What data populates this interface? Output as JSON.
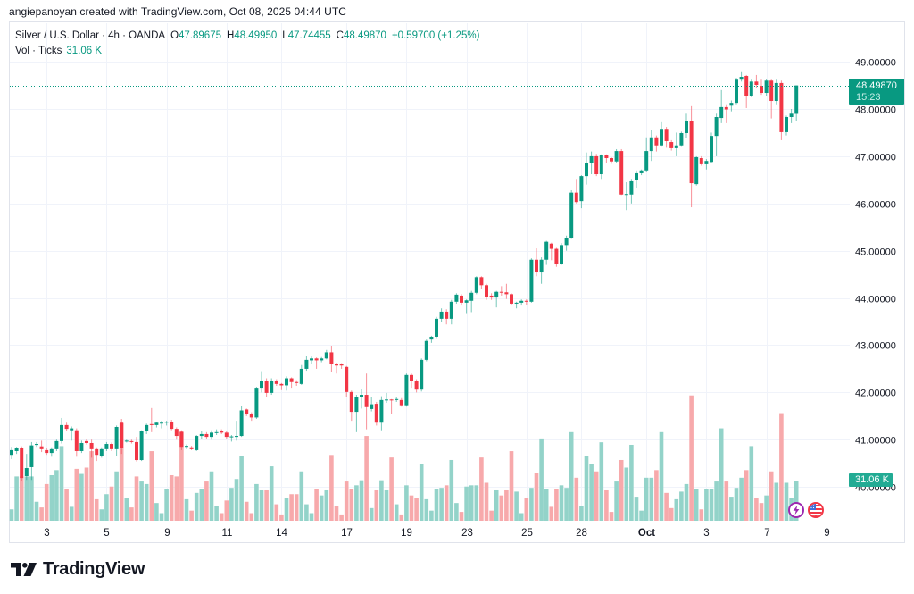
{
  "header": {
    "attribution": "angiepanoyan created with TradingView.com, Oct 08, 2025 04:44 UTC"
  },
  "legend": {
    "symbol": "Silver / U.S. Dollar · 4h · OANDA",
    "open_label": "O",
    "open": "47.89675",
    "high_label": "H",
    "high": "48.49950",
    "low_label": "L",
    "low": "47.74455",
    "close_label": "C",
    "close": "48.49870",
    "change": "+0.59700 (+1.25%)",
    "volume_label": "Vol · Ticks",
    "volume": "31.06 K"
  },
  "price_tag": {
    "price": "48.49870",
    "countdown": "15:23"
  },
  "volume_tag": {
    "value": "31.06 K"
  },
  "icons": {
    "events": "lightning-icon",
    "economic_calendar": "us-flag-icon"
  },
  "branding": {
    "logo_text": "TradingView"
  },
  "colors": {
    "up": "#089981",
    "down": "#f23645",
    "up_volume": "#93d3c9",
    "down_volume": "#f7a9ab",
    "grid": "#f0f3fa",
    "text": "#131722",
    "frame": "#e0e3eb"
  },
  "chart_data": {
    "type": "candlestick",
    "title": "Silver / U.S. Dollar · 4h · OANDA",
    "xlabel": "",
    "ylabel": "",
    "ylim": [
      39.285,
      49.834
    ],
    "grid": true,
    "last_price": 48.4987,
    "y_ticks": [
      {
        "label": "49.00000",
        "value": 49
      },
      {
        "label": "48.00000",
        "value": 48
      },
      {
        "label": "47.00000",
        "value": 47
      },
      {
        "label": "46.00000",
        "value": 46
      },
      {
        "label": "45.00000",
        "value": 45
      },
      {
        "label": "44.00000",
        "value": 44
      },
      {
        "label": "43.00000",
        "value": 43
      },
      {
        "label": "42.00000",
        "value": 42
      },
      {
        "label": "41.00000",
        "value": 41
      },
      {
        "label": "40.00000",
        "value": 40
      }
    ],
    "x_ticks": [
      {
        "label": "3",
        "bar": 7
      },
      {
        "label": "5",
        "bar": 19
      },
      {
        "label": "9",
        "bar": 31
      },
      {
        "label": "11",
        "bar": 43
      },
      {
        "label": "14",
        "bar": 54
      },
      {
        "label": "17",
        "bar": 67
      },
      {
        "label": "19",
        "bar": 79
      },
      {
        "label": "23",
        "bar": 91
      },
      {
        "label": "25",
        "bar": 103
      },
      {
        "label": "28",
        "bar": 114
      },
      {
        "label": "Oct",
        "bar": 127,
        "emphasis": true
      },
      {
        "label": "3",
        "bar": 139
      },
      {
        "label": "7",
        "bar": 151
      },
      {
        "label": "9",
        "bar": 163
      }
    ],
    "candle_fields": [
      "open",
      "high",
      "low",
      "close"
    ],
    "candles": [
      [
        40.68,
        40.85,
        40.59,
        40.78
      ],
      [
        40.76,
        40.85,
        40.7,
        40.82
      ],
      [
        40.82,
        40.86,
        40.12,
        40.19
      ],
      [
        40.23,
        40.7,
        40.15,
        40.4
      ],
      [
        40.42,
        40.95,
        40.15,
        40.88
      ],
      [
        40.89,
        40.95,
        40.85,
        40.91
      ],
      [
        40.86,
        40.98,
        40.74,
        40.8
      ],
      [
        40.78,
        40.82,
        40.68,
        40.72
      ],
      [
        40.72,
        40.84,
        40.64,
        40.8
      ],
      [
        40.8,
        41.0,
        40.76,
        40.97
      ],
      [
        40.97,
        41.46,
        40.92,
        41.31
      ],
      [
        41.31,
        41.36,
        41.18,
        41.23
      ],
      [
        41.2,
        41.28,
        40.98,
        41.24
      ],
      [
        41.2,
        41.24,
        40.64,
        40.76
      ],
      [
        40.76,
        40.98,
        40.72,
        40.93
      ],
      [
        40.97,
        41.02,
        40.9,
        40.93
      ],
      [
        40.93,
        41.0,
        40.62,
        40.8
      ],
      [
        40.8,
        40.84,
        40.55,
        40.68
      ],
      [
        40.66,
        40.84,
        40.62,
        40.8
      ],
      [
        40.8,
        40.95,
        40.76,
        40.91
      ],
      [
        40.91,
        40.94,
        40.76,
        40.8
      ],
      [
        40.8,
        41.3,
        40.66,
        41.27
      ],
      [
        41.36,
        41.44,
        40.7,
        40.82
      ],
      [
        40.96,
        41.0,
        40.94,
        40.98
      ],
      [
        40.97,
        41.0,
        40.92,
        40.95
      ],
      [
        40.95,
        41.06,
        40.54,
        40.57
      ],
      [
        40.57,
        41.2,
        40.55,
        41.18
      ],
      [
        41.18,
        41.34,
        41.12,
        41.31
      ],
      [
        41.33,
        41.67,
        41.16,
        41.31
      ],
      [
        41.31,
        41.38,
        41.26,
        41.36
      ],
      [
        41.35,
        41.4,
        41.24,
        41.36
      ],
      [
        41.36,
        41.4,
        41.3,
        41.38
      ],
      [
        41.38,
        41.42,
        41.2,
        41.23
      ],
      [
        41.23,
        41.26,
        41.0,
        41.08
      ],
      [
        41.17,
        41.2,
        40.78,
        40.85
      ],
      [
        40.85,
        40.9,
        40.8,
        40.87
      ],
      [
        40.84,
        40.87,
        40.78,
        40.8
      ],
      [
        40.78,
        41.1,
        40.76,
        41.08
      ],
      [
        41.08,
        41.18,
        41.02,
        41.12
      ],
      [
        41.12,
        41.16,
        41.02,
        41.06
      ],
      [
        41.06,
        41.2,
        41.0,
        41.15
      ],
      [
        41.15,
        41.22,
        41.1,
        41.16
      ],
      [
        41.18,
        41.22,
        41.12,
        41.15
      ],
      [
        41.15,
        41.18,
        41.02,
        41.06
      ],
      [
        41.06,
        41.1,
        40.96,
        41.07
      ],
      [
        41.06,
        41.4,
        40.98,
        41.08
      ],
      [
        41.08,
        41.72,
        41.06,
        41.62
      ],
      [
        41.64,
        41.66,
        41.5,
        41.55
      ],
      [
        41.55,
        41.58,
        41.4,
        41.47
      ],
      [
        41.47,
        42.12,
        41.44,
        42.1
      ],
      [
        42.1,
        42.45,
        42.0,
        42.25
      ],
      [
        42.25,
        42.3,
        41.9,
        41.99
      ],
      [
        41.99,
        42.3,
        41.95,
        42.25
      ],
      [
        42.25,
        42.28,
        42.14,
        42.18
      ],
      [
        42.18,
        42.2,
        42.05,
        42.15
      ],
      [
        42.15,
        42.34,
        42.04,
        42.3
      ],
      [
        42.3,
        42.32,
        42.1,
        42.22
      ],
      [
        42.22,
        42.26,
        42.14,
        42.2
      ],
      [
        42.18,
        42.58,
        42.16,
        42.5
      ],
      [
        42.5,
        42.78,
        42.46,
        42.69
      ],
      [
        42.68,
        42.76,
        42.6,
        42.72
      ],
      [
        42.72,
        42.74,
        42.5,
        42.68
      ],
      [
        42.68,
        42.75,
        42.64,
        42.72
      ],
      [
        42.72,
        42.9,
        42.7,
        42.85
      ],
      [
        42.85,
        42.99,
        42.44,
        42.6
      ],
      [
        42.6,
        42.63,
        42.4,
        42.57
      ],
      [
        42.6,
        42.62,
        42.5,
        42.57
      ],
      [
        42.54,
        42.56,
        41.9,
        42.01
      ],
      [
        42.01,
        42.04,
        41.4,
        41.59
      ],
      [
        41.59,
        41.95,
        41.16,
        41.91
      ],
      [
        41.91,
        42.08,
        41.66,
        41.95
      ],
      [
        41.95,
        42.4,
        41.22,
        41.69
      ],
      [
        41.65,
        41.9,
        41.6,
        41.75
      ],
      [
        41.76,
        41.8,
        41.3,
        41.36
      ],
      [
        41.36,
        41.92,
        41.2,
        41.84
      ],
      [
        41.84,
        41.99,
        41.78,
        41.85
      ],
      [
        41.85,
        41.86,
        41.54,
        41.84
      ],
      [
        41.84,
        41.9,
        41.8,
        41.86
      ],
      [
        41.84,
        41.88,
        41.7,
        41.73
      ],
      [
        41.73,
        42.4,
        41.7,
        42.37
      ],
      [
        42.37,
        42.4,
        42.1,
        42.24
      ],
      [
        42.25,
        42.28,
        42.0,
        42.06
      ],
      [
        42.06,
        42.72,
        42.02,
        42.69
      ],
      [
        42.69,
        43.12,
        42.66,
        43.09
      ],
      [
        43.12,
        43.2,
        43.05,
        43.18
      ],
      [
        43.18,
        43.6,
        43.15,
        43.56
      ],
      [
        43.56,
        43.78,
        43.5,
        43.71
      ],
      [
        43.71,
        43.76,
        43.44,
        43.56
      ],
      [
        43.56,
        43.96,
        43.44,
        43.92
      ],
      [
        43.92,
        44.1,
        43.88,
        44.07
      ],
      [
        44.05,
        44.08,
        43.84,
        43.9
      ],
      [
        43.9,
        43.97,
        43.68,
        43.95
      ],
      [
        43.94,
        44.15,
        43.7,
        44.11
      ],
      [
        44.11,
        44.46,
        44.08,
        44.44
      ],
      [
        44.44,
        44.46,
        44.2,
        44.27
      ],
      [
        44.27,
        44.3,
        43.96,
        44.03
      ],
      [
        44.05,
        44.1,
        43.96,
        44.01
      ],
      [
        44.01,
        44.15,
        43.8,
        44.13
      ],
      [
        44.13,
        44.25,
        44.05,
        44.12
      ],
      [
        44.12,
        44.3,
        43.98,
        44.08
      ],
      [
        44.08,
        44.1,
        43.85,
        43.88
      ],
      [
        43.88,
        43.92,
        43.78,
        43.9
      ],
      [
        43.9,
        43.97,
        43.84,
        43.94
      ],
      [
        43.94,
        43.97,
        43.86,
        43.92
      ],
      [
        43.92,
        44.84,
        43.9,
        44.81
      ],
      [
        44.81,
        45.05,
        44.46,
        44.54
      ],
      [
        44.54,
        44.86,
        44.3,
        44.81
      ],
      [
        44.81,
        45.21,
        44.7,
        45.19
      ],
      [
        45.15,
        45.17,
        44.8,
        45.04
      ],
      [
        45.04,
        45.06,
        44.66,
        44.72
      ],
      [
        44.72,
        45.16,
        44.7,
        45.12
      ],
      [
        45.12,
        45.32,
        45.0,
        45.27
      ],
      [
        45.27,
        46.28,
        45.25,
        46.23
      ],
      [
        46.23,
        46.52,
        46.0,
        46.03
      ],
      [
        46.05,
        46.6,
        45.9,
        46.58
      ],
      [
        46.58,
        47.08,
        46.4,
        46.85
      ],
      [
        46.85,
        47.1,
        46.62,
        47.0
      ],
      [
        47.0,
        47.05,
        46.58,
        46.62
      ],
      [
        46.62,
        47.04,
        46.52,
        47.02
      ],
      [
        47.02,
        47.04,
        46.86,
        46.96
      ],
      [
        46.96,
        46.98,
        46.84,
        46.89
      ],
      [
        46.89,
        47.15,
        46.86,
        47.11
      ],
      [
        47.11,
        47.15,
        46.18,
        46.19
      ],
      [
        46.19,
        46.45,
        45.86,
        46.2
      ],
      [
        46.19,
        46.52,
        46.0,
        46.47
      ],
      [
        46.49,
        46.7,
        46.32,
        46.64
      ],
      [
        46.64,
        46.72,
        46.6,
        46.7
      ],
      [
        46.7,
        47.4,
        46.66,
        47.11
      ],
      [
        47.11,
        47.55,
        46.9,
        47.4
      ],
      [
        47.4,
        47.44,
        47.1,
        47.23
      ],
      [
        47.23,
        47.72,
        47.2,
        47.58
      ],
      [
        47.58,
        47.62,
        47.18,
        47.32
      ],
      [
        47.3,
        47.34,
        47.12,
        47.17
      ],
      [
        47.17,
        47.5,
        47.0,
        47.23
      ],
      [
        47.23,
        47.52,
        47.2,
        47.49
      ],
      [
        47.49,
        47.9,
        47.38,
        47.75
      ],
      [
        47.74,
        48.06,
        45.92,
        46.43
      ],
      [
        46.41,
        47.0,
        46.38,
        46.98
      ],
      [
        46.96,
        47.0,
        46.8,
        46.83
      ],
      [
        46.83,
        46.94,
        46.72,
        46.9
      ],
      [
        46.88,
        47.5,
        46.86,
        47.43
      ],
      [
        47.43,
        47.9,
        47.0,
        47.83
      ],
      [
        47.81,
        48.4,
        47.7,
        48.04
      ],
      [
        48.04,
        48.1,
        47.7,
        47.99
      ],
      [
        48.07,
        48.18,
        47.95,
        48.13
      ],
      [
        48.13,
        48.66,
        48.1,
        48.62
      ],
      [
        48.62,
        48.78,
        48.58,
        48.68
      ],
      [
        48.7,
        48.72,
        48.02,
        48.28
      ],
      [
        48.28,
        48.62,
        48.25,
        48.58
      ],
      [
        48.58,
        48.72,
        48.45,
        48.51
      ],
      [
        48.49,
        48.62,
        48.3,
        48.34
      ],
      [
        48.34,
        48.64,
        48.28,
        48.6
      ],
      [
        48.6,
        48.62,
        47.8,
        48.17
      ],
      [
        48.17,
        48.62,
        48.1,
        48.55
      ],
      [
        48.55,
        48.6,
        47.34,
        47.51
      ],
      [
        47.51,
        47.86,
        47.44,
        47.83
      ],
      [
        47.83,
        48.0,
        47.7,
        47.9
      ],
      [
        47.89675,
        48.4995,
        47.74455,
        48.4987
      ]
    ],
    "volume_unit": "K",
    "volume": [
      9,
      35,
      35,
      35,
      35,
      15,
      10.5,
      29,
      36,
      40,
      59,
      25,
      11,
      41,
      37,
      42,
      55,
      17,
      9,
      21,
      27,
      39,
      77,
      18,
      10.5,
      35,
      31,
      29,
      55,
      14,
      6,
      25,
      36,
      35,
      70,
      17,
      8,
      22,
      25,
      31,
      39,
      12,
      6,
      16,
      26,
      33,
      51,
      15,
      6,
      29,
      24,
      24,
      43,
      13,
      5,
      18,
      21,
      21,
      39,
      13,
      6,
      25,
      20,
      24,
      52,
      12,
      5,
      31,
      25,
      28,
      32,
      67,
      10,
      24,
      32,
      24,
      50,
      13,
      5,
      28,
      20,
      18,
      45,
      17,
      8,
      25,
      26,
      28,
      48,
      14,
      7,
      27,
      28,
      28,
      50,
      30,
      8,
      24,
      20,
      24,
      55,
      23,
      6,
      18,
      26,
      38,
      65,
      25,
      11,
      25,
      28,
      26,
      70,
      34,
      12,
      51,
      45,
      39,
      62,
      24,
      7,
      31,
      48,
      42,
      60,
      19,
      8,
      34,
      34,
      40,
      70,
      22,
      10,
      17,
      23,
      29,
      99,
      25,
      9,
      25,
      25,
      31,
      73,
      31,
      19,
      26,
      34,
      40,
      59,
      18,
      14,
      20,
      39,
      30,
      85,
      30,
      18,
      31.06
    ]
  }
}
